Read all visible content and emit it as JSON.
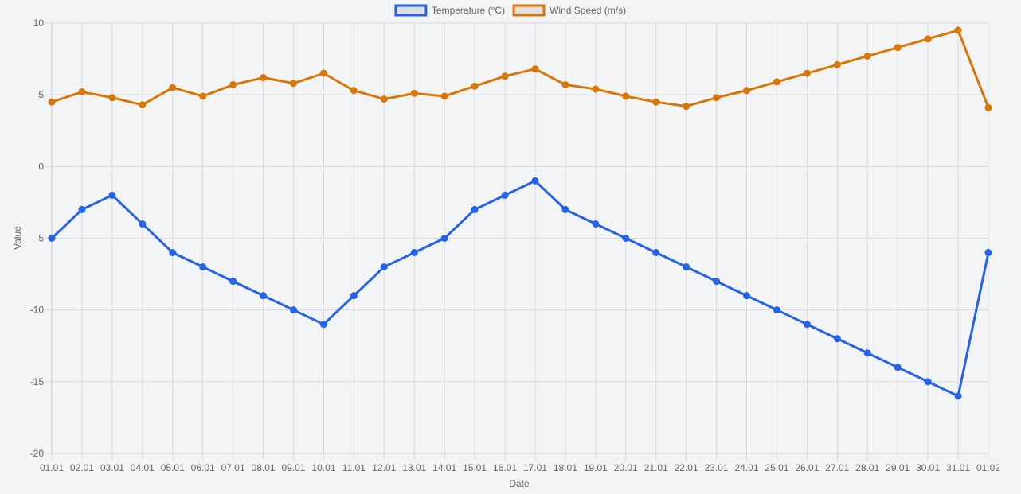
{
  "chart_data": {
    "type": "line",
    "title": "",
    "xlabel": "Date",
    "ylabel": "Value",
    "ylim": [
      -20,
      10
    ],
    "yticks": [
      10,
      5,
      0,
      -5,
      -10,
      -15,
      -20
    ],
    "grid": true,
    "legend_position": "top-center",
    "categories": [
      "01.01",
      "02.01",
      "03.01",
      "04.01",
      "05.01",
      "06.01",
      "07.01",
      "08.01",
      "09.01",
      "10.01",
      "11.01",
      "12.01",
      "13.01",
      "14.01",
      "15.01",
      "16.01",
      "17.01",
      "18.01",
      "19.01",
      "20.01",
      "21.01",
      "22.01",
      "23.01",
      "24.01",
      "25.01",
      "26.01",
      "27.01",
      "28.01",
      "29.01",
      "30.01",
      "31.01",
      "01.02"
    ],
    "series": [
      {
        "name": "Temperature (°C)",
        "color": "#2563eb",
        "values": [
          -5,
          -3,
          -2,
          -4,
          -6,
          -7,
          -8,
          -9,
          -10,
          -11,
          -9,
          -7,
          -6,
          -5,
          -3,
          -2,
          -1,
          -3,
          -4,
          -5,
          -6,
          -7,
          -8,
          -9,
          -10,
          -11,
          -12,
          -13,
          -14,
          -15,
          -16,
          -6
        ]
      },
      {
        "name": "Wind Speed (m/s)",
        "color": "#d97706",
        "values": [
          4.5,
          5.2,
          4.8,
          4.3,
          5.5,
          4.9,
          5.7,
          6.2,
          5.8,
          6.5,
          5.3,
          4.7,
          5.1,
          4.9,
          5.6,
          6.3,
          6.8,
          5.7,
          5.4,
          4.9,
          4.5,
          4.2,
          4.8,
          5.3,
          5.9,
          6.5,
          7.1,
          7.7,
          8.3,
          8.9,
          9.5,
          4.1
        ]
      }
    ]
  }
}
